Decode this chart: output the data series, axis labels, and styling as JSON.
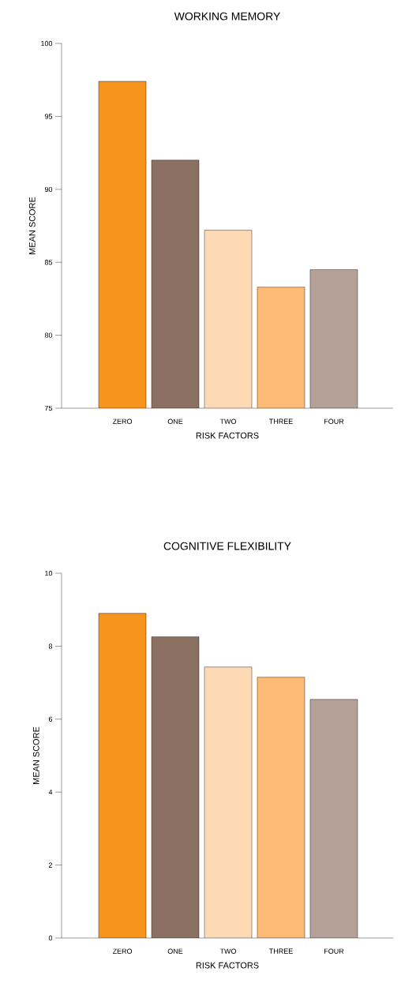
{
  "chart_data": [
    {
      "type": "bar",
      "title": "WORKING MEMORY",
      "xlabel": "RISK FACTORS",
      "ylabel": "MEAN SCORE",
      "categories": [
        "ZERO",
        "ONE",
        "TWO",
        "THREE",
        "FOUR"
      ],
      "values": [
        97.4,
        92.0,
        87.2,
        83.3,
        84.5
      ],
      "colors": [
        "#f7941d",
        "#8c7163",
        "#fdd9b5",
        "#fdba74",
        "#b5a198"
      ],
      "ylim": [
        75,
        100
      ],
      "yticks": [
        75,
        80,
        85,
        90,
        95,
        100
      ]
    },
    {
      "type": "bar",
      "title": "COGNITIVE FLEXIBILITY",
      "xlabel": "RISK FACTORS",
      "ylabel": "MEAN SCORE",
      "categories": [
        "ZERO",
        "ONE",
        "TWO",
        "THREE",
        "FOUR"
      ],
      "values": [
        8.9,
        8.26,
        7.43,
        7.15,
        6.54
      ],
      "colors": [
        "#f7941d",
        "#8c7163",
        "#fdd9b5",
        "#fdba74",
        "#b5a198"
      ],
      "ylim": [
        0,
        10
      ],
      "yticks": [
        0,
        2,
        4,
        6,
        8,
        10
      ]
    }
  ]
}
